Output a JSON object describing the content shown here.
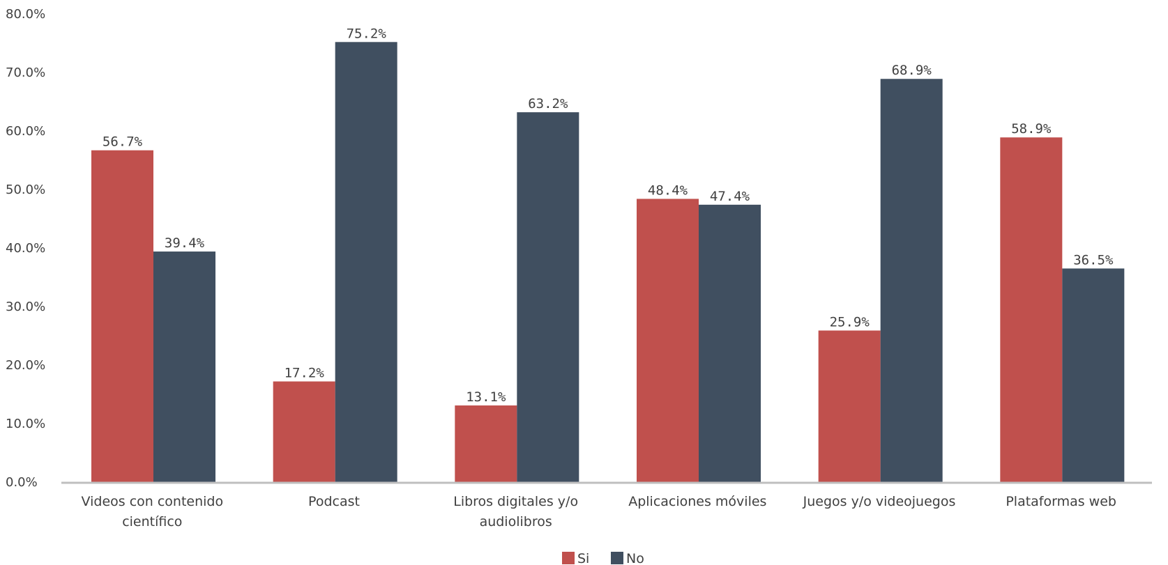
{
  "chart_data": {
    "type": "bar",
    "categories": [
      [
        "Videos con contenido",
        "científico"
      ],
      [
        "Podcast"
      ],
      [
        "Libros digitales y/o",
        "audiolibros"
      ],
      [
        "Aplicaciones móviles"
      ],
      [
        "Juegos y/o videojuegos"
      ],
      [
        "Plataformas web"
      ]
    ],
    "series": [
      {
        "name": "Si",
        "color": "#C0504D",
        "values": [
          56.7,
          17.2,
          13.1,
          48.4,
          25.9,
          58.9
        ],
        "labels": [
          "56.7%",
          "17.2%",
          "13.1%",
          "48.4%",
          "25.9%",
          "58.9%"
        ]
      },
      {
        "name": "No",
        "color": "#404F60",
        "values": [
          39.4,
          75.2,
          63.2,
          47.4,
          68.9,
          36.5
        ],
        "labels": [
          "39.4%",
          "75.2%",
          "63.2%",
          "47.4%",
          "68.9%",
          "36.5%"
        ]
      }
    ],
    "yticks": [
      0,
      10,
      20,
      30,
      40,
      50,
      60,
      70,
      80
    ],
    "ytick_labels": [
      "0.0%",
      "10.0%",
      "20.0%",
      "30.0%",
      "40.0%",
      "50.0%",
      "60.0%",
      "70.0%",
      "80.0%"
    ],
    "ylim": [
      0,
      80
    ],
    "grid": false,
    "legend": "bottom-center",
    "title": "",
    "xlabel": "",
    "ylabel": ""
  }
}
